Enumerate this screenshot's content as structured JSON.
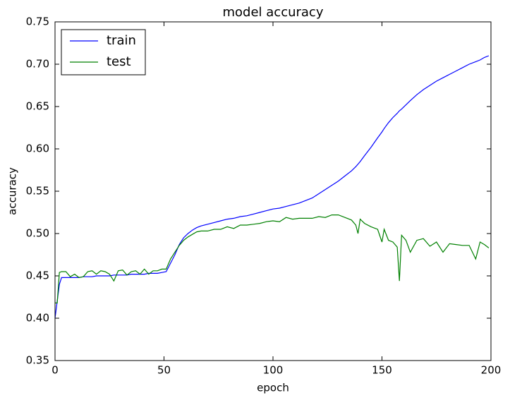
{
  "chart_data": {
    "type": "line",
    "title": "model accuracy",
    "xlabel": "epoch",
    "ylabel": "accuracy",
    "x": [
      0,
      1,
      2,
      3,
      5,
      7,
      9,
      11,
      13,
      15,
      17,
      19,
      21,
      23,
      25,
      27,
      29,
      31,
      33,
      35,
      37,
      39,
      41,
      43,
      45,
      47,
      49,
      51,
      53,
      55,
      57,
      59,
      61,
      63,
      65,
      67,
      70,
      73,
      76,
      79,
      82,
      85,
      88,
      91,
      94,
      97,
      100,
      103,
      106,
      109,
      112,
      115,
      118,
      121,
      124,
      127,
      130,
      133,
      136,
      138,
      139,
      140,
      142,
      145,
      148,
      150,
      151,
      153,
      155,
      157,
      158,
      159,
      161,
      163,
      166,
      169,
      172,
      175,
      178,
      181,
      184,
      187,
      190,
      193,
      195,
      197,
      199
    ],
    "series": [
      {
        "name": "train",
        "color": "#0000ff",
        "values": [
          0.4,
          0.42,
          0.44,
          0.448,
          0.448,
          0.448,
          0.448,
          0.448,
          0.449,
          0.449,
          0.449,
          0.45,
          0.45,
          0.45,
          0.45,
          0.451,
          0.451,
          0.451,
          0.451,
          0.452,
          0.452,
          0.452,
          0.452,
          0.453,
          0.453,
          0.453,
          0.454,
          0.455,
          0.465,
          0.475,
          0.487,
          0.495,
          0.5,
          0.504,
          0.507,
          0.509,
          0.511,
          0.513,
          0.515,
          0.517,
          0.518,
          0.52,
          0.521,
          0.523,
          0.525,
          0.527,
          0.529,
          0.53,
          0.532,
          0.534,
          0.536,
          0.539,
          0.542,
          0.547,
          0.552,
          0.557,
          0.562,
          0.568,
          0.574,
          0.579,
          0.582,
          0.585,
          0.592,
          0.602,
          0.613,
          0.62,
          0.624,
          0.631,
          0.637,
          0.642,
          0.645,
          0.647,
          0.652,
          0.657,
          0.664,
          0.67,
          0.675,
          0.68,
          0.684,
          0.688,
          0.692,
          0.696,
          0.7,
          0.703,
          0.705,
          0.708,
          0.71
        ]
      },
      {
        "name": "test",
        "color": "#008000",
        "values": [
          0.418,
          0.418,
          0.454,
          0.455,
          0.455,
          0.449,
          0.452,
          0.448,
          0.449,
          0.455,
          0.456,
          0.452,
          0.456,
          0.455,
          0.452,
          0.444,
          0.456,
          0.457,
          0.451,
          0.455,
          0.456,
          0.452,
          0.458,
          0.452,
          0.456,
          0.456,
          0.458,
          0.458,
          0.47,
          0.478,
          0.486,
          0.492,
          0.496,
          0.499,
          0.502,
          0.503,
          0.503,
          0.505,
          0.505,
          0.508,
          0.506,
          0.51,
          0.51,
          0.511,
          0.512,
          0.514,
          0.515,
          0.514,
          0.519,
          0.517,
          0.518,
          0.518,
          0.518,
          0.52,
          0.519,
          0.522,
          0.522,
          0.519,
          0.516,
          0.51,
          0.5,
          0.517,
          0.512,
          0.508,
          0.505,
          0.49,
          0.505,
          0.492,
          0.49,
          0.484,
          0.444,
          0.498,
          0.492,
          0.478,
          0.492,
          0.494,
          0.485,
          0.49,
          0.478,
          0.488,
          0.487,
          0.486,
          0.486,
          0.47,
          0.49,
          0.487,
          0.483
        ]
      }
    ],
    "xlim": [
      0,
      200
    ],
    "xticks": [
      0,
      50,
      100,
      150,
      200
    ],
    "ylim": [
      0.35,
      0.75
    ],
    "yticks": [
      0.35,
      {
        "value": 0.4,
        "label": "0.40"
      },
      0.45,
      {
        "value": 0.5,
        "label": "0.50"
      },
      0.55,
      {
        "value": 0.6,
        "label": "0.60"
      },
      0.65,
      {
        "value": 0.7,
        "label": "0.70"
      },
      0.75
    ],
    "legend": "upper left"
  }
}
